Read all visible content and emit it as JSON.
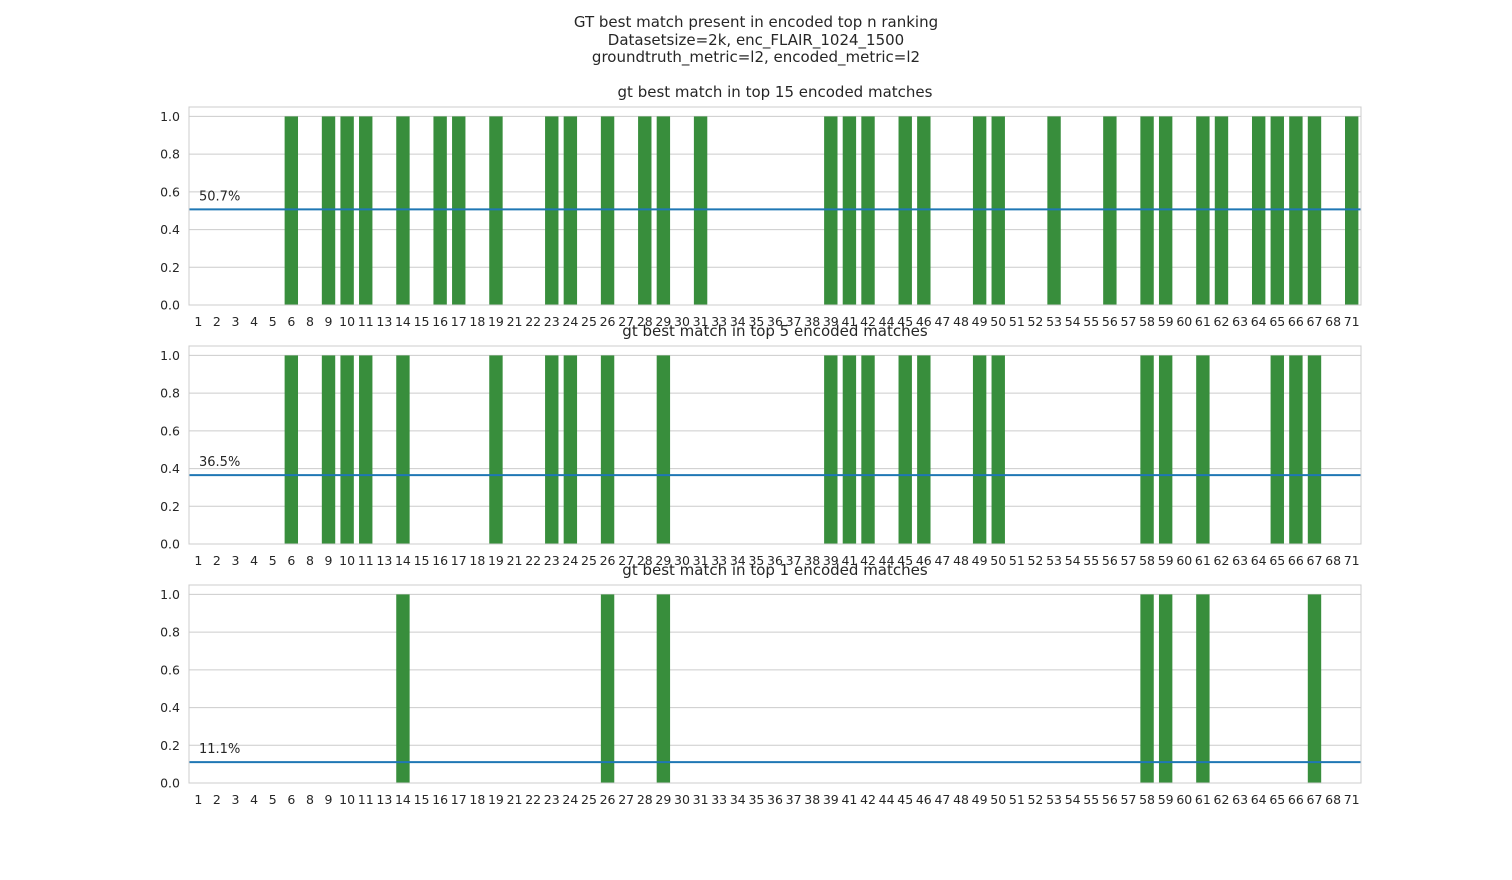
{
  "figure": {
    "suptitle": [
      "GT best match present in encoded top n ranking",
      "Datasetsize=2k, enc_FLAIR_1024_1500",
      "groundtruth_metric=l2, encoded_metric=l2"
    ]
  },
  "colors": {
    "bar": "#388e3c",
    "mean_line": "#1f77b4",
    "grid": "#cccccc",
    "frame": "#cccccc"
  },
  "chart_data": [
    {
      "type": "bar",
      "title": "gt best match in top 15 encoded matches",
      "categories": [
        "1",
        "2",
        "3",
        "4",
        "5",
        "6",
        "8",
        "9",
        "10",
        "11",
        "13",
        "14",
        "15",
        "16",
        "17",
        "18",
        "19",
        "21",
        "22",
        "23",
        "24",
        "25",
        "26",
        "27",
        "28",
        "29",
        "30",
        "31",
        "33",
        "34",
        "35",
        "36",
        "37",
        "38",
        "39",
        "41",
        "42",
        "44",
        "45",
        "46",
        "47",
        "48",
        "49",
        "50",
        "51",
        "52",
        "53",
        "54",
        "55",
        "56",
        "57",
        "58",
        "59",
        "60",
        "61",
        "62",
        "63",
        "64",
        "65",
        "66",
        "67",
        "68",
        "71"
      ],
      "values": [
        0,
        0,
        0,
        0,
        0,
        1,
        0,
        1,
        1,
        1,
        0,
        1,
        0,
        1,
        1,
        0,
        1,
        0,
        0,
        1,
        1,
        0,
        1,
        0,
        1,
        1,
        0,
        1,
        0,
        0,
        0,
        0,
        0,
        0,
        1,
        1,
        1,
        0,
        1,
        1,
        0,
        0,
        1,
        1,
        0,
        0,
        1,
        0,
        0,
        1,
        0,
        1,
        1,
        0,
        1,
        1,
        0,
        1,
        1,
        1,
        1,
        0,
        1
      ],
      "mean": 0.507,
      "mean_label": "50.7%",
      "yticks": [
        "0.0",
        "0.2",
        "0.4",
        "0.6",
        "0.8",
        "1.0"
      ],
      "ylim": [
        0,
        1.05
      ],
      "grid": true
    },
    {
      "type": "bar",
      "title": "gt best match in top 5 encoded matches",
      "categories": [
        "1",
        "2",
        "3",
        "4",
        "5",
        "6",
        "8",
        "9",
        "10",
        "11",
        "13",
        "14",
        "15",
        "16",
        "17",
        "18",
        "19",
        "21",
        "22",
        "23",
        "24",
        "25",
        "26",
        "27",
        "28",
        "29",
        "30",
        "31",
        "33",
        "34",
        "35",
        "36",
        "37",
        "38",
        "39",
        "41",
        "42",
        "44",
        "45",
        "46",
        "47",
        "48",
        "49",
        "50",
        "51",
        "52",
        "53",
        "54",
        "55",
        "56",
        "57",
        "58",
        "59",
        "60",
        "61",
        "62",
        "63",
        "64",
        "65",
        "66",
        "67",
        "68",
        "71"
      ],
      "values": [
        0,
        0,
        0,
        0,
        0,
        1,
        0,
        1,
        1,
        1,
        0,
        1,
        0,
        0,
        0,
        0,
        1,
        0,
        0,
        1,
        1,
        0,
        1,
        0,
        0,
        1,
        0,
        0,
        0,
        0,
        0,
        0,
        0,
        0,
        1,
        1,
        1,
        0,
        1,
        1,
        0,
        0,
        1,
        1,
        0,
        0,
        0,
        0,
        0,
        0,
        0,
        1,
        1,
        0,
        1,
        0,
        0,
        0,
        1,
        1,
        1,
        0,
        0
      ],
      "mean": 0.365,
      "mean_label": "36.5%",
      "yticks": [
        "0.0",
        "0.2",
        "0.4",
        "0.6",
        "0.8",
        "1.0"
      ],
      "ylim": [
        0,
        1.05
      ],
      "grid": true
    },
    {
      "type": "bar",
      "title": "gt best match in top 1 encoded matches",
      "categories": [
        "1",
        "2",
        "3",
        "4",
        "5",
        "6",
        "8",
        "9",
        "10",
        "11",
        "13",
        "14",
        "15",
        "16",
        "17",
        "18",
        "19",
        "21",
        "22",
        "23",
        "24",
        "25",
        "26",
        "27",
        "28",
        "29",
        "30",
        "31",
        "33",
        "34",
        "35",
        "36",
        "37",
        "38",
        "39",
        "41",
        "42",
        "44",
        "45",
        "46",
        "47",
        "48",
        "49",
        "50",
        "51",
        "52",
        "53",
        "54",
        "55",
        "56",
        "57",
        "58",
        "59",
        "60",
        "61",
        "62",
        "63",
        "64",
        "65",
        "66",
        "67",
        "68",
        "71"
      ],
      "values": [
        0,
        0,
        0,
        0,
        0,
        0,
        0,
        0,
        0,
        0,
        0,
        1,
        0,
        0,
        0,
        0,
        0,
        0,
        0,
        0,
        0,
        0,
        1,
        0,
        0,
        1,
        0,
        0,
        0,
        0,
        0,
        0,
        0,
        0,
        0,
        0,
        0,
        0,
        0,
        0,
        0,
        0,
        0,
        0,
        0,
        0,
        0,
        0,
        0,
        0,
        0,
        1,
        1,
        0,
        1,
        0,
        0,
        0,
        0,
        0,
        1,
        0,
        0
      ],
      "mean": 0.111,
      "mean_label": "11.1%",
      "yticks": [
        "0.0",
        "0.2",
        "0.4",
        "0.6",
        "0.8",
        "1.0"
      ],
      "ylim": [
        0,
        1.05
      ],
      "grid": true
    }
  ]
}
